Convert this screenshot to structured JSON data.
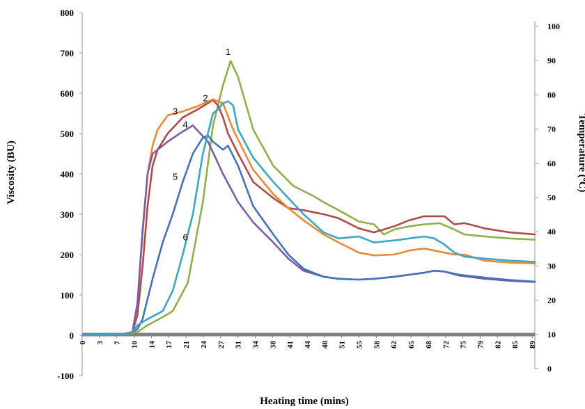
{
  "chart_data": {
    "type": "line",
    "xlabel": "Heating time (mins)",
    "ylabel": "Viscosity (BU)",
    "y2label": "Temperature (ºC)",
    "ylim": [
      -100,
      800
    ],
    "y2lim": [
      0,
      100
    ],
    "xlim": [
      0,
      90
    ],
    "yticks": [
      -100,
      0,
      100,
      200,
      300,
      400,
      500,
      600,
      700,
      800
    ],
    "y2ticks": [
      0,
      10,
      20,
      30,
      40,
      50,
      60,
      70,
      80,
      90,
      100
    ],
    "xtick_labels": [
      "0",
      "3",
      "7",
      "10",
      "14",
      "17",
      "21",
      "24",
      "27",
      "31",
      "34",
      "38",
      "41",
      "44",
      "48",
      "51",
      "55",
      "58",
      "62",
      "65",
      "68",
      "72",
      "75",
      "79",
      "82",
      "85",
      "89"
    ],
    "grid": false,
    "legend": "none",
    "series": [
      {
        "name": "1",
        "color": "#8db04a",
        "x": [
          0,
          8,
          11,
          13,
          16,
          18,
          21,
          24,
          26,
          28,
          29.5,
          31,
          34,
          38,
          42,
          46,
          48,
          51,
          55,
          58,
          60,
          62,
          65,
          68,
          71,
          74,
          76,
          80,
          85,
          90
        ],
        "y": [
          0,
          3,
          8,
          25,
          45,
          60,
          130,
          330,
          520,
          620,
          680,
          640,
          510,
          420,
          370,
          345,
          330,
          310,
          282,
          275,
          250,
          262,
          270,
          275,
          278,
          262,
          250,
          245,
          240,
          237
        ]
      },
      {
        "name": "2",
        "color": "#b04a48",
        "x": [
          0,
          8,
          10,
          11,
          12,
          13,
          14,
          15,
          17,
          20,
          23,
          26,
          27,
          28,
          29,
          31,
          34,
          38,
          41,
          44,
          48,
          51,
          55,
          58,
          62,
          65,
          68,
          72,
          74,
          76,
          80,
          85,
          90
        ],
        "y": [
          0,
          3,
          8,
          50,
          170,
          320,
          420,
          460,
          500,
          540,
          560,
          583,
          570,
          540,
          500,
          450,
          380,
          340,
          315,
          310,
          300,
          290,
          265,
          255,
          270,
          285,
          295,
          295,
          275,
          278,
          265,
          255,
          250
        ]
      },
      {
        "name": "3",
        "color": "#e8893a",
        "x": [
          0,
          8,
          10,
          11,
          12,
          13,
          14,
          15,
          17,
          20,
          23,
          26,
          28,
          30,
          34,
          38,
          41,
          44,
          48,
          51,
          55,
          58,
          62,
          65,
          68,
          72,
          74,
          76,
          80,
          85,
          90
        ],
        "y": [
          0,
          3,
          8,
          80,
          250,
          400,
          470,
          510,
          545,
          555,
          568,
          585,
          575,
          510,
          410,
          350,
          315,
          285,
          250,
          230,
          205,
          198,
          200,
          210,
          215,
          205,
          200,
          200,
          185,
          180,
          178
        ]
      },
      {
        "name": "4",
        "color": "#7b5ca8",
        "x": [
          0,
          8,
          10,
          11,
          12,
          13,
          14,
          15,
          17,
          20,
          22,
          25,
          28,
          31,
          34,
          38,
          41,
          44,
          48,
          51,
          55,
          58,
          62,
          65,
          68,
          70,
          72,
          75,
          80,
          85,
          90
        ],
        "y": [
          0,
          3,
          8,
          80,
          260,
          400,
          450,
          460,
          480,
          505,
          520,
          480,
          400,
          330,
          280,
          230,
          190,
          160,
          145,
          140,
          138,
          140,
          145,
          150,
          155,
          160,
          158,
          148,
          140,
          135,
          132
        ]
      },
      {
        "name": "5",
        "color": "#4472b8",
        "x": [
          0,
          8,
          10,
          11,
          12,
          14,
          16,
          18,
          20,
          22,
          24,
          25,
          26,
          27,
          28,
          29,
          31,
          34,
          38,
          41,
          44,
          48,
          51,
          55,
          58,
          62,
          65,
          68,
          70,
          72,
          75,
          80,
          85,
          90
        ],
        "y": [
          0,
          3,
          8,
          15,
          40,
          140,
          230,
          300,
          380,
          450,
          490,
          495,
          480,
          470,
          460,
          470,
          420,
          320,
          250,
          200,
          165,
          145,
          140,
          138,
          140,
          145,
          150,
          155,
          160,
          158,
          150,
          143,
          137,
          133
        ]
      },
      {
        "name": "6",
        "color": "#3ea6c4",
        "x": [
          0,
          8,
          10,
          11,
          13,
          16,
          18,
          20,
          22,
          24,
          26,
          27,
          28,
          29,
          30,
          31,
          34,
          38,
          41,
          44,
          48,
          51,
          55,
          58,
          62,
          65,
          68,
          70,
          72,
          74,
          76,
          80,
          85,
          90
        ],
        "y": [
          0,
          3,
          8,
          25,
          40,
          60,
          110,
          200,
          300,
          450,
          550,
          560,
          575,
          580,
          570,
          510,
          440,
          380,
          340,
          300,
          255,
          240,
          245,
          230,
          235,
          240,
          245,
          240,
          225,
          205,
          195,
          190,
          185,
          182
        ]
      }
    ],
    "curve_labels": [
      {
        "text": "1",
        "x": 29,
        "y": 695
      },
      {
        "text": "2",
        "x": 24.5,
        "y": 580
      },
      {
        "text": "3",
        "x": 18.5,
        "y": 547
      },
      {
        "text": "4",
        "x": 20.5,
        "y": 515
      },
      {
        "text": "5",
        "x": 18.5,
        "y": 385
      },
      {
        "text": "6",
        "x": 20.5,
        "y": 235
      }
    ]
  }
}
